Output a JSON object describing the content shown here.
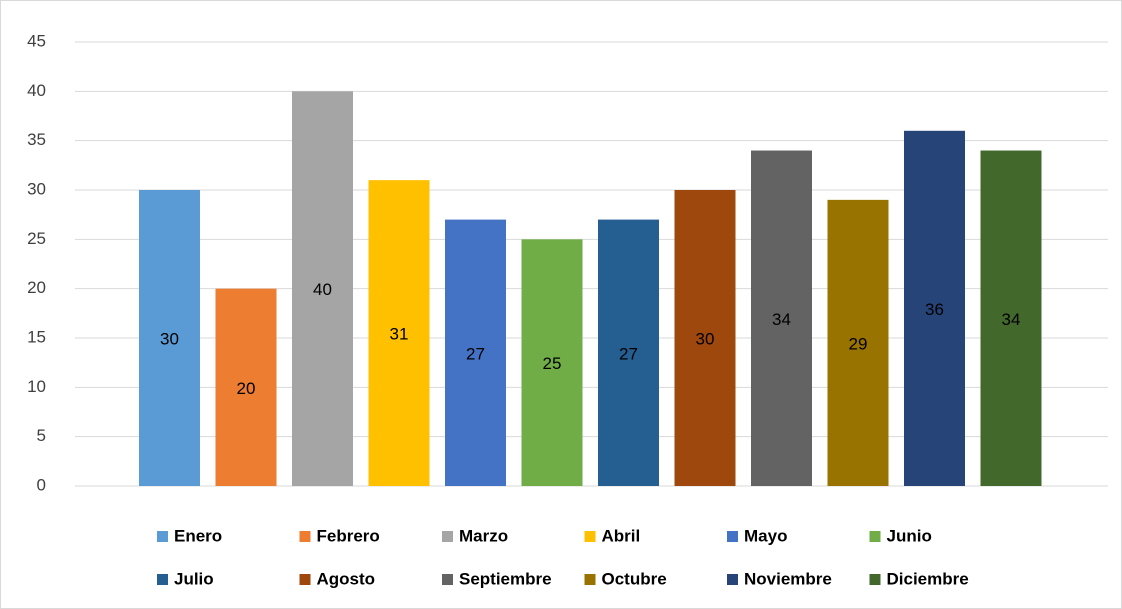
{
  "chart_data": {
    "type": "bar",
    "series": [
      {
        "name": "Enero",
        "color": "#5b9bd5",
        "values": [
          30
        ]
      },
      {
        "name": "Febrero",
        "color": "#ed7d31",
        "values": [
          20
        ]
      },
      {
        "name": "Marzo",
        "color": "#a5a5a5",
        "values": [
          40
        ]
      },
      {
        "name": "Abril",
        "color": "#ffc000",
        "values": [
          31
        ]
      },
      {
        "name": "Mayo",
        "color": "#4472c4",
        "values": [
          27
        ]
      },
      {
        "name": "Junio",
        "color": "#70ad47",
        "values": [
          25
        ]
      },
      {
        "name": "Julio",
        "color": "#255e91",
        "values": [
          27
        ]
      },
      {
        "name": "Agosto",
        "color": "#9e480e",
        "values": [
          30
        ]
      },
      {
        "name": "Septiembre",
        "color": "#636363",
        "values": [
          34
        ]
      },
      {
        "name": "Octubre",
        "color": "#997300",
        "values": [
          29
        ]
      },
      {
        "name": "Noviembre",
        "color": "#264478",
        "values": [
          36
        ]
      },
      {
        "name": "Diciembre",
        "color": "#43682b",
        "values": [
          34
        ]
      }
    ],
    "ylim": [
      0,
      45
    ],
    "yticks": [
      0,
      5,
      10,
      15,
      20,
      25,
      30,
      35,
      40,
      45
    ],
    "grid": true,
    "legend": "bottom"
  }
}
